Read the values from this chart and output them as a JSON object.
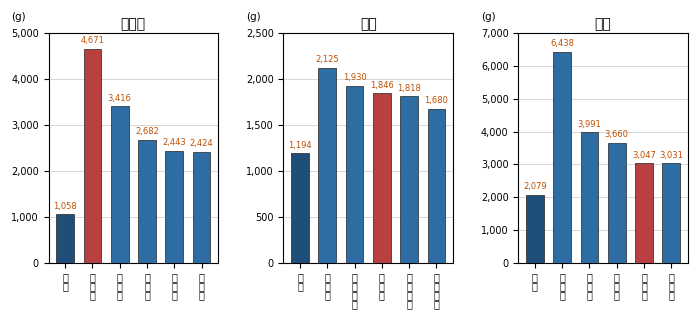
{
  "charts": [
    {
      "title": "かれい",
      "unit": "(g)",
      "categories": [
        "全国",
        "鳥取市",
        "青森市",
        "秋田市",
        "金沢市",
        "新潟市"
      ],
      "values": [
        1058,
        4671,
        3416,
        2682,
        2443,
        2424
      ],
      "colors": [
        "#1f4e79",
        "#b94040",
        "#2e6da4",
        "#2e6da4",
        "#2e6da4",
        "#2e6da4"
      ],
      "ylim": [
        0,
        5000
      ],
      "yticks": [
        0,
        1000,
        2000,
        3000,
        4000,
        5000
      ]
    },
    {
      "title": "さば",
      "unit": "(g)",
      "categories": [
        "全国",
        "松江市",
        "北九州市",
        "鳥取市",
        "鹿児島市",
        "和歌山市"
      ],
      "values": [
        1194,
        2125,
        1930,
        1846,
        1818,
        1680
      ],
      "colors": [
        "#1f4e79",
        "#2e6da4",
        "#2e6da4",
        "#b94040",
        "#2e6da4",
        "#2e6da4"
      ],
      "ylim": [
        0,
        2500
      ],
      "yticks": [
        0,
        500,
        1000,
        1500,
        2000,
        2500
      ]
    },
    {
      "title": "ぶり",
      "unit": "(g)",
      "categories": [
        "全国",
        "富山市",
        "金沢市",
        "松江市",
        "鳥取市",
        "大分市"
      ],
      "values": [
        2079,
        6438,
        3991,
        3660,
        3047,
        3031
      ],
      "colors": [
        "#1f4e79",
        "#2e6da4",
        "#2e6da4",
        "#2e6da4",
        "#b94040",
        "#2e6da4"
      ],
      "ylim": [
        0,
        7000
      ],
      "yticks": [
        0,
        1000,
        2000,
        3000,
        4000,
        5000,
        6000,
        7000
      ]
    }
  ],
  "label_color": "#c05000",
  "background_color": "#ffffff",
  "grid_color": "#c8c8c8",
  "bar_edge_color": "#222222"
}
